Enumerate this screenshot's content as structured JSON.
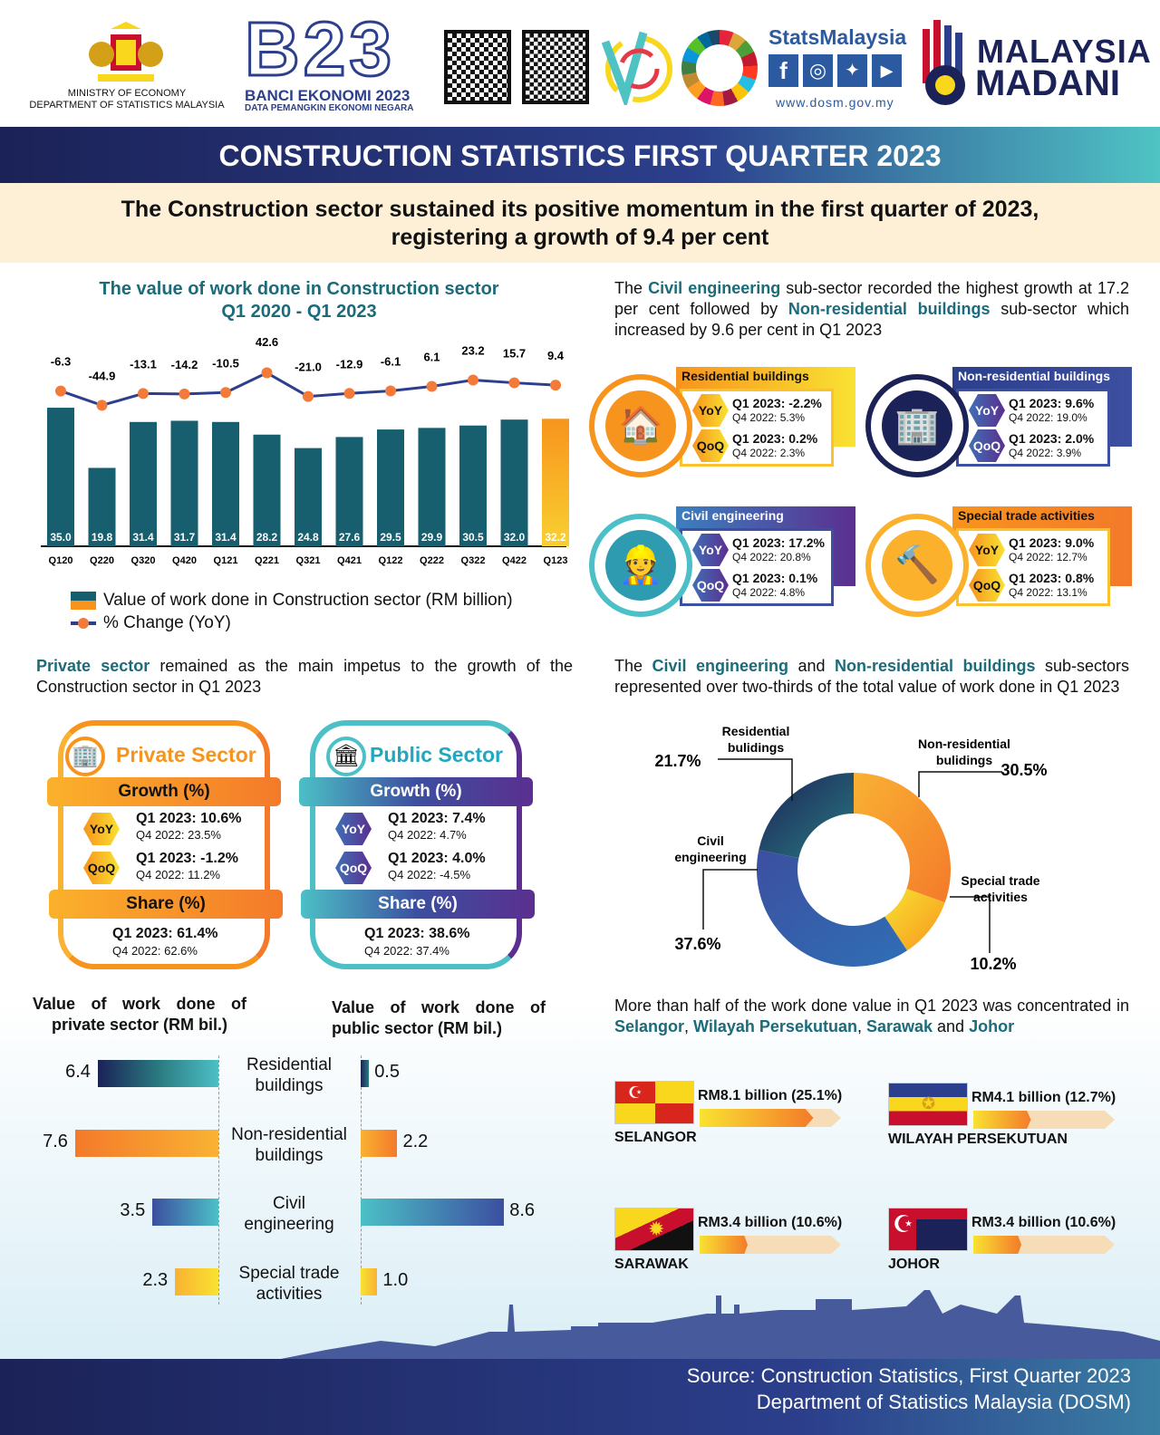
{
  "header": {
    "ministry_line1": "MINISTRY OF ECONOMY",
    "ministry_line2": "DEPARTMENT OF STATISTICS MALAYSIA",
    "banci_logo": "B23",
    "banci_title": "BANCI EKONOMI 2023",
    "banci_sub": "DATA PEMANGKIN EKONOMI NEGARA",
    "stats_brand": "StatsMalaysia",
    "website": "www.dosm.gov.my",
    "madani_line1": "MALAYSIA",
    "madani_line2": "MADANI",
    "social_icons": [
      "facebook-icon",
      "instagram-icon",
      "twitter-icon",
      "youtube-icon"
    ]
  },
  "title": "CONSTRUCTION STATISTICS FIRST QUARTER 2023",
  "subtitle_line1": "The Construction sector sustained its positive momentum in the first quarter of 2023,",
  "subtitle_line2": "registering a growth of 9.4 per cent",
  "colors": {
    "navy": "#1b2257",
    "teal": "#1b6b7a",
    "orange": "#f7941d",
    "yellow": "#f9e232",
    "blue": "#3c4fa0",
    "bar": "#175e6e"
  },
  "chart_data": [
    {
      "type": "bar",
      "title": "The value of work done in Construction sector",
      "subtitle": "Q1 2020 - Q1 2023",
      "categories": [
        "Q120",
        "Q220",
        "Q320",
        "Q420",
        "Q121",
        "Q221",
        "Q321",
        "Q421",
        "Q122",
        "Q222",
        "Q322",
        "Q422",
        "Q123"
      ],
      "series": [
        {
          "name": "Value of work done in Construction sector (RM billion)",
          "type": "bar",
          "values": [
            35.0,
            19.8,
            31.4,
            31.7,
            31.4,
            28.2,
            24.8,
            27.6,
            29.5,
            29.9,
            30.5,
            32.0,
            32.2
          ]
        },
        {
          "name": "% Change (YoY)",
          "type": "line",
          "values": [
            -6.3,
            -44.9,
            -13.1,
            -14.2,
            -10.5,
            42.6,
            -21.0,
            -12.9,
            -6.1,
            6.1,
            23.2,
            15.7,
            9.4
          ]
        }
      ],
      "legend_placement": "bottom-left",
      "grid": false
    },
    {
      "type": "pie",
      "style": "donut",
      "labels": [
        "Non-residential buildings",
        "Special trade activities",
        "Civil engineering",
        "Residential buildings"
      ],
      "label_text": [
        "Non-residential\nbulidings",
        "Special trade\nactivities",
        "Civil\nengineering",
        "Residential\nbulidings"
      ],
      "values": [
        30.5,
        10.2,
        37.6,
        21.7
      ],
      "value_labels": [
        "30.5%",
        "10.2%",
        "37.6%",
        "21.7%"
      ],
      "colors": [
        "#f7941d",
        "#f9e232",
        "#3c4fa0",
        "#1b4f5e"
      ]
    },
    {
      "type": "bar",
      "orientation": "horizontal",
      "title": "Value of work done of private sector (RM bil.)",
      "categories": [
        "Residential buildings",
        "Non-residential buildings",
        "Civil engineering",
        "Special trade activities"
      ],
      "values": [
        6.4,
        7.6,
        3.5,
        2.3
      ]
    },
    {
      "type": "bar",
      "orientation": "horizontal",
      "title": "Value of work done of public sector (RM bil.)",
      "categories": [
        "Residential buildings",
        "Non-residential buildings",
        "Civil engineering",
        "Special trade activities"
      ],
      "values": [
        0.5,
        2.2,
        8.6,
        1.0
      ]
    }
  ],
  "bar_chart": {
    "title1": "The value of work done in Construction sector",
    "title2": "Q1 2020 - Q1 2023",
    "legend_bar": "Value of work done in Construction sector (RM billion)",
    "legend_line": "% Change (YoY)"
  },
  "subsector_intro": {
    "t1": "The ",
    "h1": "Civil engineering",
    "t2": " sub-sector recorded the highest growth at 17.2 per cent followed by ",
    "h2": "Non-residential buildings",
    "t3": " sub-sector which increased by 9.6 per cent in Q1 2023"
  },
  "subsectors": [
    {
      "name": "Residential buildings",
      "yoy_label": "YoY",
      "qoq_label": "QoQ",
      "yoy_q1": "Q1 2023: -2.2%",
      "yoy_q4": "Q4 2022: 5.3%",
      "qoq_q1": "Q1 2023: 0.2%",
      "qoq_q4": "Q4 2022: 2.3%"
    },
    {
      "name": "Non-residential buildings",
      "yoy_label": "YoY",
      "qoq_label": "QoQ",
      "yoy_q1": "Q1 2023: 9.6%",
      "yoy_q4": "Q4 2022: 19.0%",
      "qoq_q1": "Q1 2023: 2.0%",
      "qoq_q4": "Q4 2022: 3.9%"
    },
    {
      "name": "Civil engineering",
      "yoy_label": "YoY",
      "qoq_label": "QoQ",
      "yoy_q1": "Q1 2023: 17.2%",
      "yoy_q4": "Q4 2022: 20.8%",
      "qoq_q1": "Q1 2023: 0.1%",
      "qoq_q4": "Q4 2022: 4.8%"
    },
    {
      "name": "Special trade activities",
      "yoy_label": "YoY",
      "qoq_label": "QoQ",
      "yoy_q1": "Q1 2023: 9.0%",
      "yoy_q4": "Q4 2022: 12.7%",
      "qoq_q1": "Q1 2023: 0.8%",
      "qoq_q4": "Q4 2022: 13.1%"
    }
  ],
  "sector_intro": {
    "h1": "Private sector",
    "t1": " remained as the main impetus to the growth of the Construction sector in Q1 2023"
  },
  "sectors": [
    {
      "name": "Private Sector",
      "growth": "Growth (%)",
      "yoy_label": "YoY",
      "qoq_label": "QoQ",
      "yoy_q1": "Q1 2023: 10.6%",
      "yoy_q4": "Q4 2022: 23.5%",
      "qoq_q1": "Q1 2023: -1.2%",
      "qoq_q4": "Q4 2022: 11.2%",
      "share": "Share (%)",
      "share_q1": "Q1 2023: 61.4%",
      "share_q4": "Q4 2022: 62.6%"
    },
    {
      "name": "Public Sector",
      "growth": "Growth (%)",
      "yoy_label": "YoY",
      "qoq_label": "QoQ",
      "yoy_q1": "Q1 2023: 7.4%",
      "yoy_q4": "Q4 2022: 4.7%",
      "qoq_q1": "Q1 2023: 4.0%",
      "qoq_q4": "Q4 2022: -4.5%",
      "share": "Share (%)",
      "share_q1": "Q1 2023: 38.6%",
      "share_q4": "Q4 2022: 37.4%"
    }
  ],
  "share_intro": {
    "t1": "The ",
    "h1": "Civil engineering",
    "t2": " and ",
    "h2": "Non-residential buildings",
    "t3": " sub-sectors represented over two-thirds of the total value of work done in Q1 2023"
  },
  "hbar": {
    "private_title": "Value of work done of private sector (RM bil.)",
    "public_title": "Value of work done of public sector (RM bil.)",
    "cat_labels": [
      "Residential\nbuildings",
      "Non-residential\nbuildings",
      "Civil\nengineering",
      "Special trade\nactivities"
    ],
    "private_labels": [
      "6.4",
      "7.6",
      "3.5",
      "2.3"
    ],
    "public_labels": [
      "0.5",
      "2.2",
      "8.6",
      "1.0"
    ]
  },
  "states_intro": {
    "t1": "More than half of the work done value in Q1 2023 was concentrated in ",
    "s1": "Selangor",
    ", ": ", ",
    "s2": "Wilayah Persekutuan",
    "c2": ", ",
    "s3": "Sarawak",
    "and": " and ",
    "s4": "Johor"
  },
  "states": [
    {
      "name": "SELANGOR",
      "value": "RM8.1 billion (25.1%)",
      "share": 25.1
    },
    {
      "name": "WILAYAH PERSEKUTUAN",
      "value": "RM4.1 billion (12.7%)",
      "share": 12.7
    },
    {
      "name": "SARAWAK",
      "value": "RM3.4 billion (10.6%)",
      "share": 10.6
    },
    {
      "name": "JOHOR",
      "value": "RM3.4 billion (10.6%)",
      "share": 10.6
    }
  ],
  "footer": {
    "line1": "Source: Construction Statistics, First Quarter 2023",
    "line2": "Department of Statistics Malaysia (DOSM)"
  }
}
